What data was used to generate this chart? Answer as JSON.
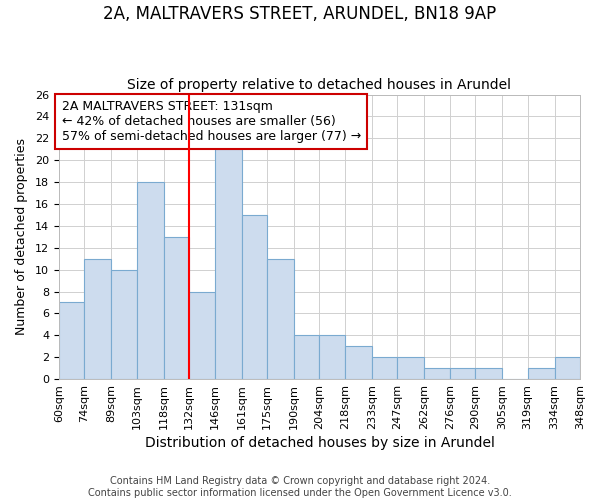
{
  "title": "2A, MALTRAVERS STREET, ARUNDEL, BN18 9AP",
  "subtitle": "Size of property relative to detached houses in Arundel",
  "xlabel": "Distribution of detached houses by size in Arundel",
  "ylabel": "Number of detached properties",
  "bar_color": "#cddcee",
  "bar_edgecolor": "#7aaad0",
  "bar_linewidth": 0.8,
  "redline_x": 132,
  "bin_edges": [
    60,
    74,
    89,
    103,
    118,
    132,
    146,
    161,
    175,
    190,
    204,
    218,
    233,
    247,
    262,
    276,
    290,
    305,
    319,
    334,
    348
  ],
  "bar_heights": [
    7,
    11,
    10,
    18,
    13,
    8,
    21,
    15,
    11,
    4,
    4,
    3,
    2,
    2,
    1,
    1,
    1,
    0,
    1,
    2
  ],
  "xtick_labels": [
    "60sqm",
    "74sqm",
    "89sqm",
    "103sqm",
    "118sqm",
    "132sqm",
    "146sqm",
    "161sqm",
    "175sqm",
    "190sqm",
    "204sqm",
    "218sqm",
    "233sqm",
    "247sqm",
    "262sqm",
    "276sqm",
    "290sqm",
    "305sqm",
    "319sqm",
    "334sqm",
    "348sqm"
  ],
  "ylim": [
    0,
    26
  ],
  "yticks": [
    0,
    2,
    4,
    6,
    8,
    10,
    12,
    14,
    16,
    18,
    20,
    22,
    24,
    26
  ],
  "annotation_box_text": "2A MALTRAVERS STREET: 131sqm\n← 42% of detached houses are smaller (56)\n57% of semi-detached houses are larger (77) →",
  "grid_color": "#d0d0d0",
  "background_color": "#ffffff",
  "footer_text": "Contains HM Land Registry data © Crown copyright and database right 2024.\nContains public sector information licensed under the Open Government Licence v3.0.",
  "title_fontsize": 12,
  "subtitle_fontsize": 10,
  "xlabel_fontsize": 10,
  "ylabel_fontsize": 9,
  "annotation_fontsize": 9,
  "tick_fontsize": 8,
  "footer_fontsize": 7
}
